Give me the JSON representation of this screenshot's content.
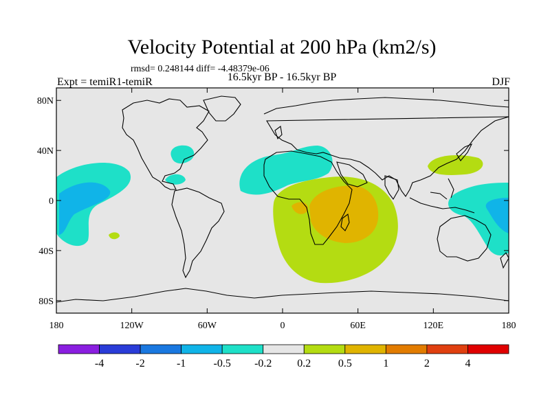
{
  "map": {
    "title": "Velocity Potential at 200 hPa (km2/s)",
    "stats": "rmsd= 0.248144 diff= -4.48379e-06",
    "left_label": "Expt = temiR1-temiR",
    "center_label": "16.5kyr BP - 16.5kyr BP",
    "right_label": "DJF",
    "lat_ticks": [
      {
        "label": "80N",
        "lat": 80
      },
      {
        "label": "40N",
        "lat": 40
      },
      {
        "label": "0",
        "lat": 0
      },
      {
        "label": "40S",
        "lat": -40
      },
      {
        "label": "80S",
        "lat": -80
      }
    ],
    "lon_ticks": [
      {
        "label": "180",
        "lon": -180
      },
      {
        "label": "120W",
        "lon": -120
      },
      {
        "label": "60W",
        "lon": -60
      },
      {
        "label": "0",
        "lon": 0
      },
      {
        "label": "60E",
        "lon": 60
      },
      {
        "label": "120E",
        "lon": 120
      },
      {
        "label": "180",
        "lon": 180
      }
    ],
    "lon_range": [
      -180,
      180
    ],
    "lat_range": [
      -90,
      90
    ]
  },
  "colorbar": {
    "colors": [
      "#8a1ee0",
      "#2a3cd8",
      "#1a78e0",
      "#10b4e8",
      "#1ee0c8",
      "#e6e6e6",
      "#b4dc12",
      "#e0b400",
      "#e27c00",
      "#e04010",
      "#e00000"
    ],
    "labels": [
      "-4",
      "-2",
      "-1",
      "-0.5",
      "-0.2",
      "0.2",
      "0.5",
      "1",
      "2",
      "4"
    ]
  },
  "colors": {
    "map_background": "#e6e6e6",
    "coastline": "#000000"
  }
}
